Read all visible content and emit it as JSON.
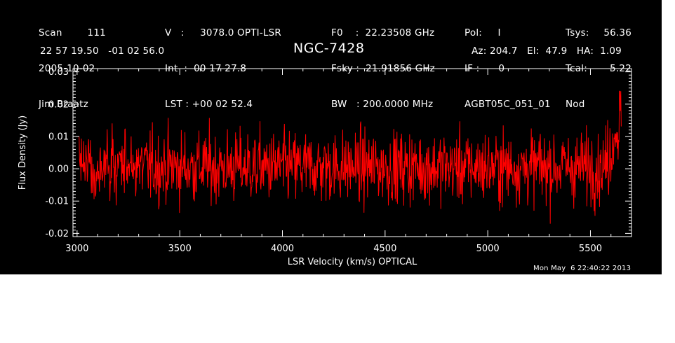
{
  "header": {
    "col1": [
      "Scan        111",
      "2005-10-02",
      "Jim Braatz"
    ],
    "col2": [
      "V   :     3078.0 OPTI-LSR",
      "Int  :  00 17 27.8",
      "LST : +00 02 52.4"
    ],
    "col3": [
      "F0    :  22.23508 GHz",
      "Fsky :  21.91856 GHz",
      "BW   : 200.0000 MHz"
    ],
    "col4": [
      "Pol:     I",
      "IF :      0",
      "AGBT05C_051_01"
    ],
    "col5": [
      "Tsys:",
      "Tcal:",
      "Nod"
    ],
    "col6": [
      "56.36",
      "5.22",
      ""
    ],
    "coords": "22 57 19.50   -01 02 56.0",
    "source": "NGC-7428",
    "pointing": "Az: 204.7   El:  47.9   HA:  1.09",
    "timestamp": "Mon May  6 22:40:22 2013"
  },
  "colors": {
    "background": "#000000",
    "axes": "#ffffff",
    "trace": "#ff0000"
  },
  "chart_data": {
    "type": "line",
    "xlabel": "LSR Velocity (km/s) OPTICAL",
    "ylabel": "Flux Density (Jy)",
    "xlim": [
      2980,
      5700
    ],
    "ylim": [
      -0.021,
      0.031
    ],
    "xticks": [
      3000,
      3500,
      4000,
      4500,
      5000,
      5500
    ],
    "xtick_labels": [
      "3000",
      "3500",
      "4000",
      "4500",
      "5000",
      "5500"
    ],
    "yticks": [
      -0.02,
      -0.01,
      0.0,
      0.01,
      0.02,
      0.03
    ],
    "ytick_labels": [
      "-0.02",
      "-0.01",
      "0.00",
      "0.01",
      "0.02",
      "0.03"
    ],
    "grid": false,
    "series": [
      {
        "x_start": 3010,
        "x_end": 5650,
        "n_channels": 1200,
        "noise_rms": 0.0065,
        "mean": 0.0005,
        "end_excursion": {
          "x": 5640,
          "y": 0.024
        },
        "envelope_min": -0.018,
        "envelope_max": 0.016
      }
    ]
  }
}
